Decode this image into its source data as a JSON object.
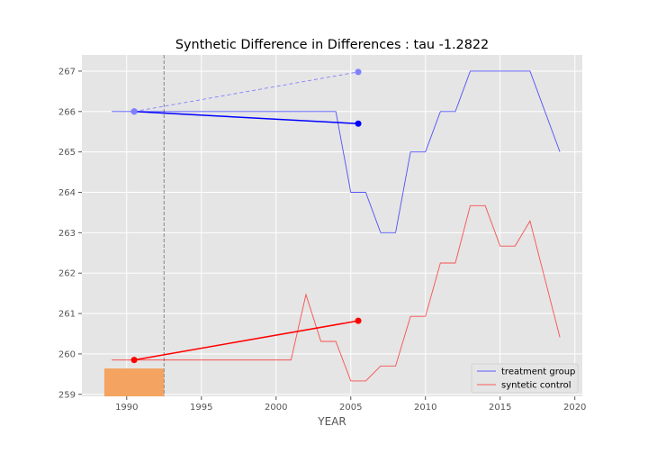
{
  "chart_data": {
    "type": "line",
    "title": "Synthetic Difference in Differences : tau -1.2822",
    "xlabel": "YEAR",
    "ylabel": "",
    "xlim": [
      1987,
      2020.5
    ],
    "ylim": [
      258.95,
      267.4
    ],
    "xticks": [
      1990,
      1995,
      2000,
      2005,
      2010,
      2015,
      2020
    ],
    "yticks": [
      259,
      260,
      261,
      262,
      263,
      264,
      265,
      266,
      267
    ],
    "grid": true,
    "legend_position": "lower-right",
    "intervention_line_x": 1992.5,
    "series": [
      {
        "name": "treatment group",
        "color": "#0000ff",
        "x": [
          1989,
          1990,
          1991,
          1992,
          1993,
          1994,
          1995,
          1996,
          1997,
          1998,
          1999,
          2000,
          2001,
          2002,
          2003,
          2004,
          2005,
          2006,
          2007,
          2008,
          2009,
          2010,
          2011,
          2012,
          2013,
          2014,
          2015,
          2016,
          2017,
          2018,
          2019
        ],
        "y": [
          266,
          266,
          266,
          266,
          266,
          266,
          266,
          266,
          266,
          266,
          266,
          266,
          266,
          266,
          266,
          266,
          264,
          264,
          263,
          263,
          265,
          265,
          266,
          266,
          267,
          267,
          267,
          267,
          267,
          266,
          265
        ]
      },
      {
        "name": "syntetic control",
        "color": "#ff0000",
        "x": [
          1989,
          1990,
          1991,
          1992,
          1993,
          1994,
          1995,
          1996,
          1997,
          1998,
          1999,
          2000,
          2001,
          2002,
          2003,
          2004,
          2005,
          2006,
          2007,
          2008,
          2009,
          2010,
          2011,
          2012,
          2013,
          2014,
          2015,
          2016,
          2017,
          2018,
          2019
        ],
        "y": [
          259.85,
          259.85,
          259.85,
          259.85,
          259.85,
          259.85,
          259.85,
          259.85,
          259.85,
          259.85,
          259.85,
          259.85,
          259.85,
          261.47,
          260.31,
          260.31,
          259.33,
          259.33,
          259.7,
          259.7,
          260.93,
          260.93,
          262.25,
          262.25,
          263.67,
          263.67,
          262.67,
          262.67,
          263.29,
          261.85,
          260.41
        ]
      }
    ],
    "segments": [
      {
        "role": "treatment pre-post",
        "color": "#0000ff",
        "x": [
          1990.5,
          2005.5
        ],
        "y": [
          266.0,
          265.7
        ],
        "style": "solid"
      },
      {
        "role": "control pre-post",
        "color": "#ff0000",
        "x": [
          1990.5,
          2005.5
        ],
        "y": [
          259.85,
          260.82
        ],
        "style": "solid"
      },
      {
        "role": "counterfactual",
        "color": "#8080ff",
        "x": [
          1990.5,
          2005.5
        ],
        "y": [
          266.0,
          266.98
        ],
        "style": "dashed"
      }
    ],
    "weight_bars": [
      {
        "color": "#f4a460",
        "x0": 1988.5,
        "x1": 1992.5,
        "y": 259.64
      }
    ]
  }
}
